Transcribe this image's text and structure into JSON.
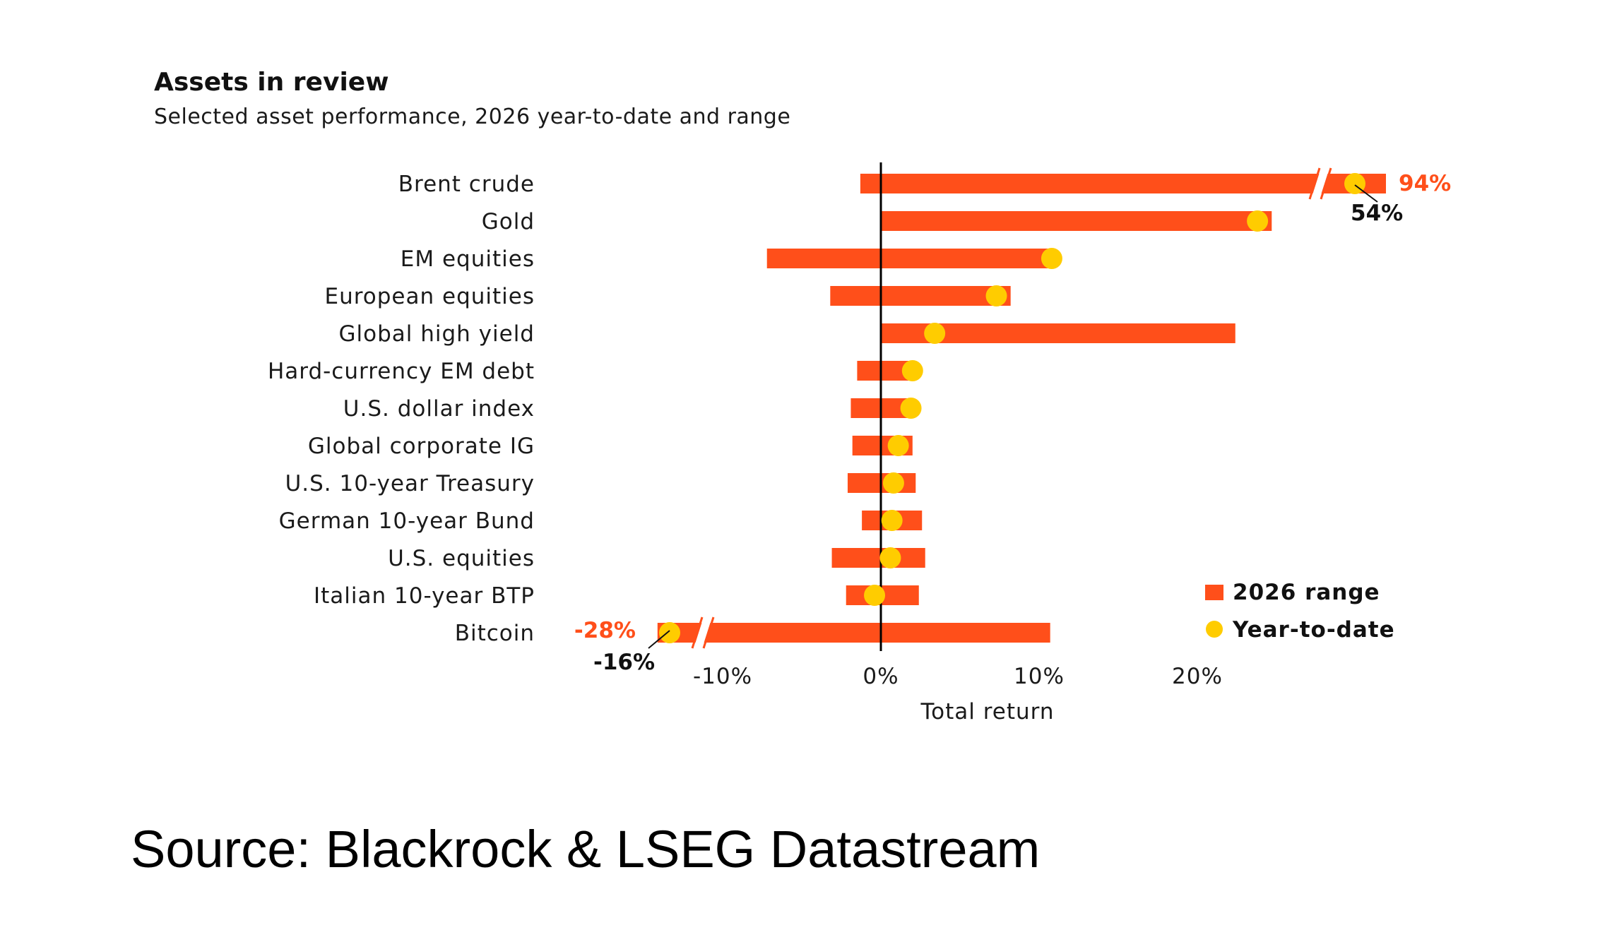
{
  "chart_data": {
    "type": "bar",
    "title": "Assets in review",
    "subtitle": "Selected asset performance, 2026 year-to-date and range",
    "xlabel": "Total return",
    "x_ticks": [
      "-10%",
      "0%",
      "10%",
      "20%"
    ],
    "x_tick_values": [
      -10,
      0,
      10,
      20
    ],
    "categories": [
      "Brent crude",
      "Gold",
      "EM equities",
      "European equities",
      "Global high yield",
      "Hard-currency EM debt",
      "U.S. dollar index",
      "Global corporate IG",
      "U.S. 10-year Treasury",
      "German 10-year Bund",
      "U.S. equities",
      "Italian 10-year BTP",
      "Bitcoin"
    ],
    "series": [
      {
        "name": "2026 range",
        "range": [
          [
            -1.3,
            94
          ],
          [
            0,
            24.7
          ],
          [
            -7.2,
            10.7
          ],
          [
            -3.2,
            8.2
          ],
          [
            0,
            22.4
          ],
          [
            -1.5,
            2.2
          ],
          [
            -1.9,
            2.0
          ],
          [
            -1.8,
            2.0
          ],
          [
            -2.1,
            2.2
          ],
          [
            -1.2,
            2.6
          ],
          [
            -3.1,
            2.8
          ],
          [
            -2.2,
            2.4
          ],
          [
            -28,
            10.7
          ]
        ]
      },
      {
        "name": "Year-to-date",
        "values": [
          54,
          23.8,
          10.8,
          7.3,
          3.4,
          2.0,
          1.9,
          1.1,
          0.8,
          0.7,
          0.6,
          -0.4,
          -16
        ]
      }
    ],
    "annotations": {
      "brent_range_max": "94%",
      "brent_ytd": "54%",
      "bitcoin_range_min": "-28%",
      "bitcoin_ytd": "-16%"
    },
    "legend_position": "bottom-right",
    "colors": {
      "range": "#ff4f1a",
      "ytd": "#ffcc00",
      "axis": "#000000"
    }
  },
  "source": "Source: Blackrock & LSEG Datastream"
}
